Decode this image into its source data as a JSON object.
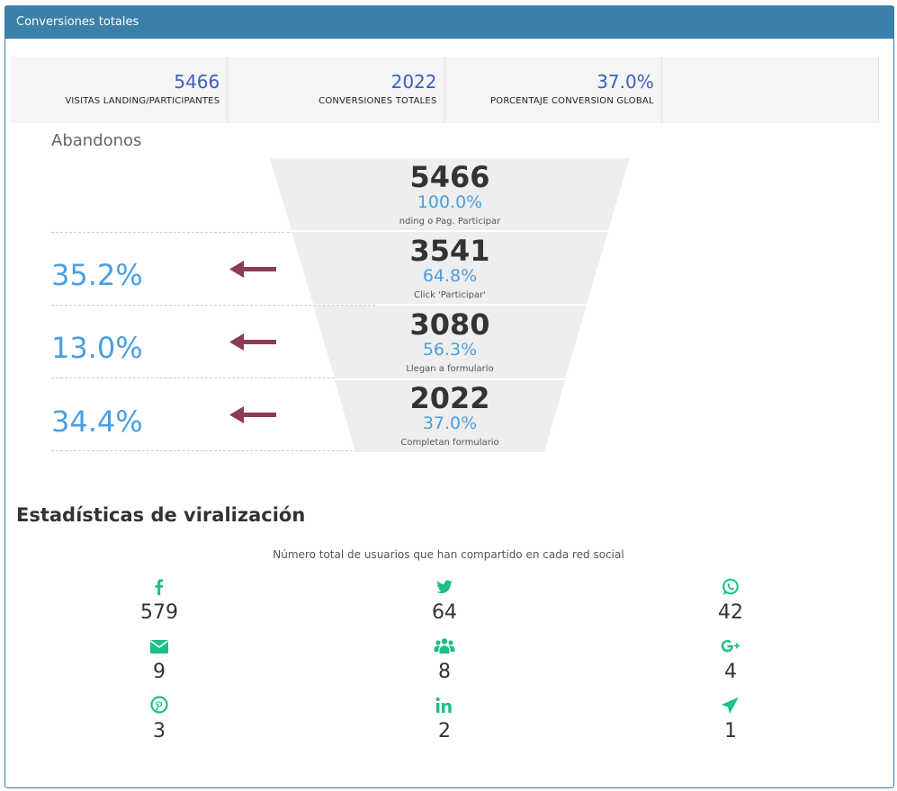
{
  "panel": {
    "title": "Conversiones totales"
  },
  "kpis": [
    {
      "value": "5466",
      "label": "VISITAS LANDING/PARTICIPANTES"
    },
    {
      "value": "2022",
      "label": "CONVERSIONES TOTALES"
    },
    {
      "value": "37.0%",
      "label": "PORCENTAJE CONVERSION GLOBAL"
    }
  ],
  "abandon": {
    "title": "Abandonos",
    "values": [
      "35.2%",
      "13.0%",
      "34.4%"
    ]
  },
  "funnel": {
    "stages": [
      {
        "count": "5466",
        "pct": "100.0%",
        "label": "nding o Pag. Participar"
      },
      {
        "count": "3541",
        "pct": "64.8%",
        "label": "Click 'Participar'"
      },
      {
        "count": "3080",
        "pct": "56.3%",
        "label": "Llegan a formulario"
      },
      {
        "count": "2022",
        "pct": "37.0%",
        "label": "Completan formulario"
      }
    ]
  },
  "viral": {
    "title": "Estadísticas de viralización",
    "subtitle": "Número total de usuarios que han compartido en cada red social",
    "accent": "#1dbf84",
    "items": [
      {
        "icon": "facebook-icon",
        "value": "579"
      },
      {
        "icon": "twitter-icon",
        "value": "64"
      },
      {
        "icon": "whatsapp-icon",
        "value": "42"
      },
      {
        "icon": "email-icon",
        "value": "9"
      },
      {
        "icon": "group-icon",
        "value": "8"
      },
      {
        "icon": "google-plus-icon",
        "value": "4"
      },
      {
        "icon": "pinterest-icon",
        "value": "3"
      },
      {
        "icon": "linkedin-icon",
        "value": "2"
      },
      {
        "icon": "telegram-icon",
        "value": "1"
      }
    ]
  }
}
